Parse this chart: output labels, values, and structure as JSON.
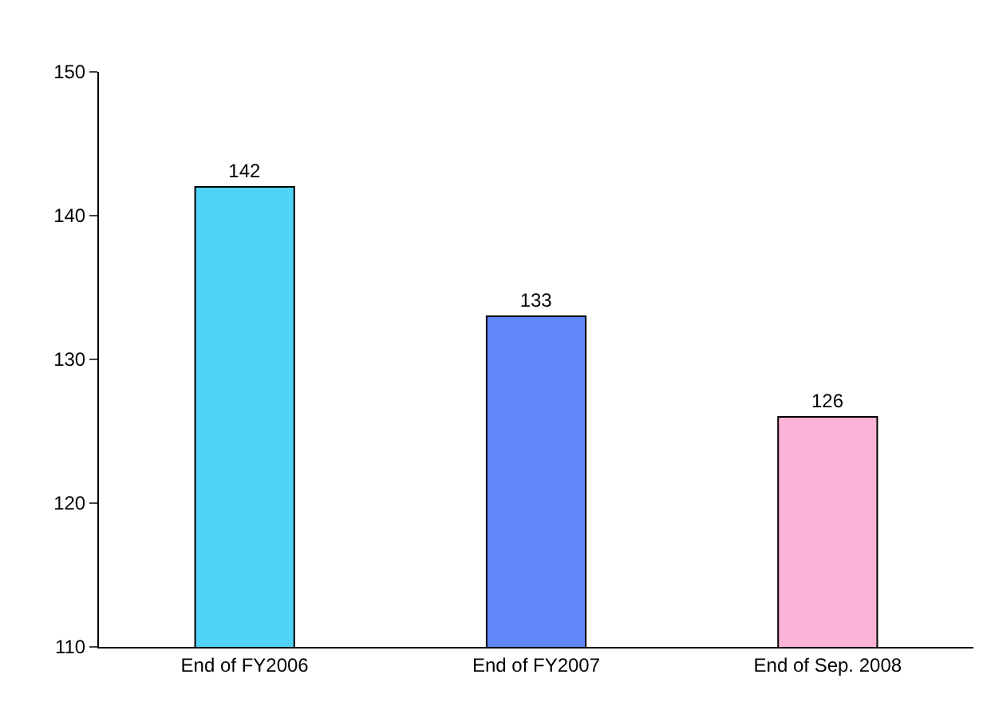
{
  "chart_data": {
    "type": "bar",
    "categories": [
      "End of FY2006",
      "End of FY2007",
      "End of Sep. 2008"
    ],
    "values": [
      142,
      133,
      126
    ],
    "colors": [
      "#4fd3f7",
      "#5f86fb",
      "#fbb3d8"
    ],
    "ylim": [
      110,
      150
    ],
    "yticks": [
      110,
      120,
      130,
      140,
      150
    ],
    "data_labels": true
  }
}
